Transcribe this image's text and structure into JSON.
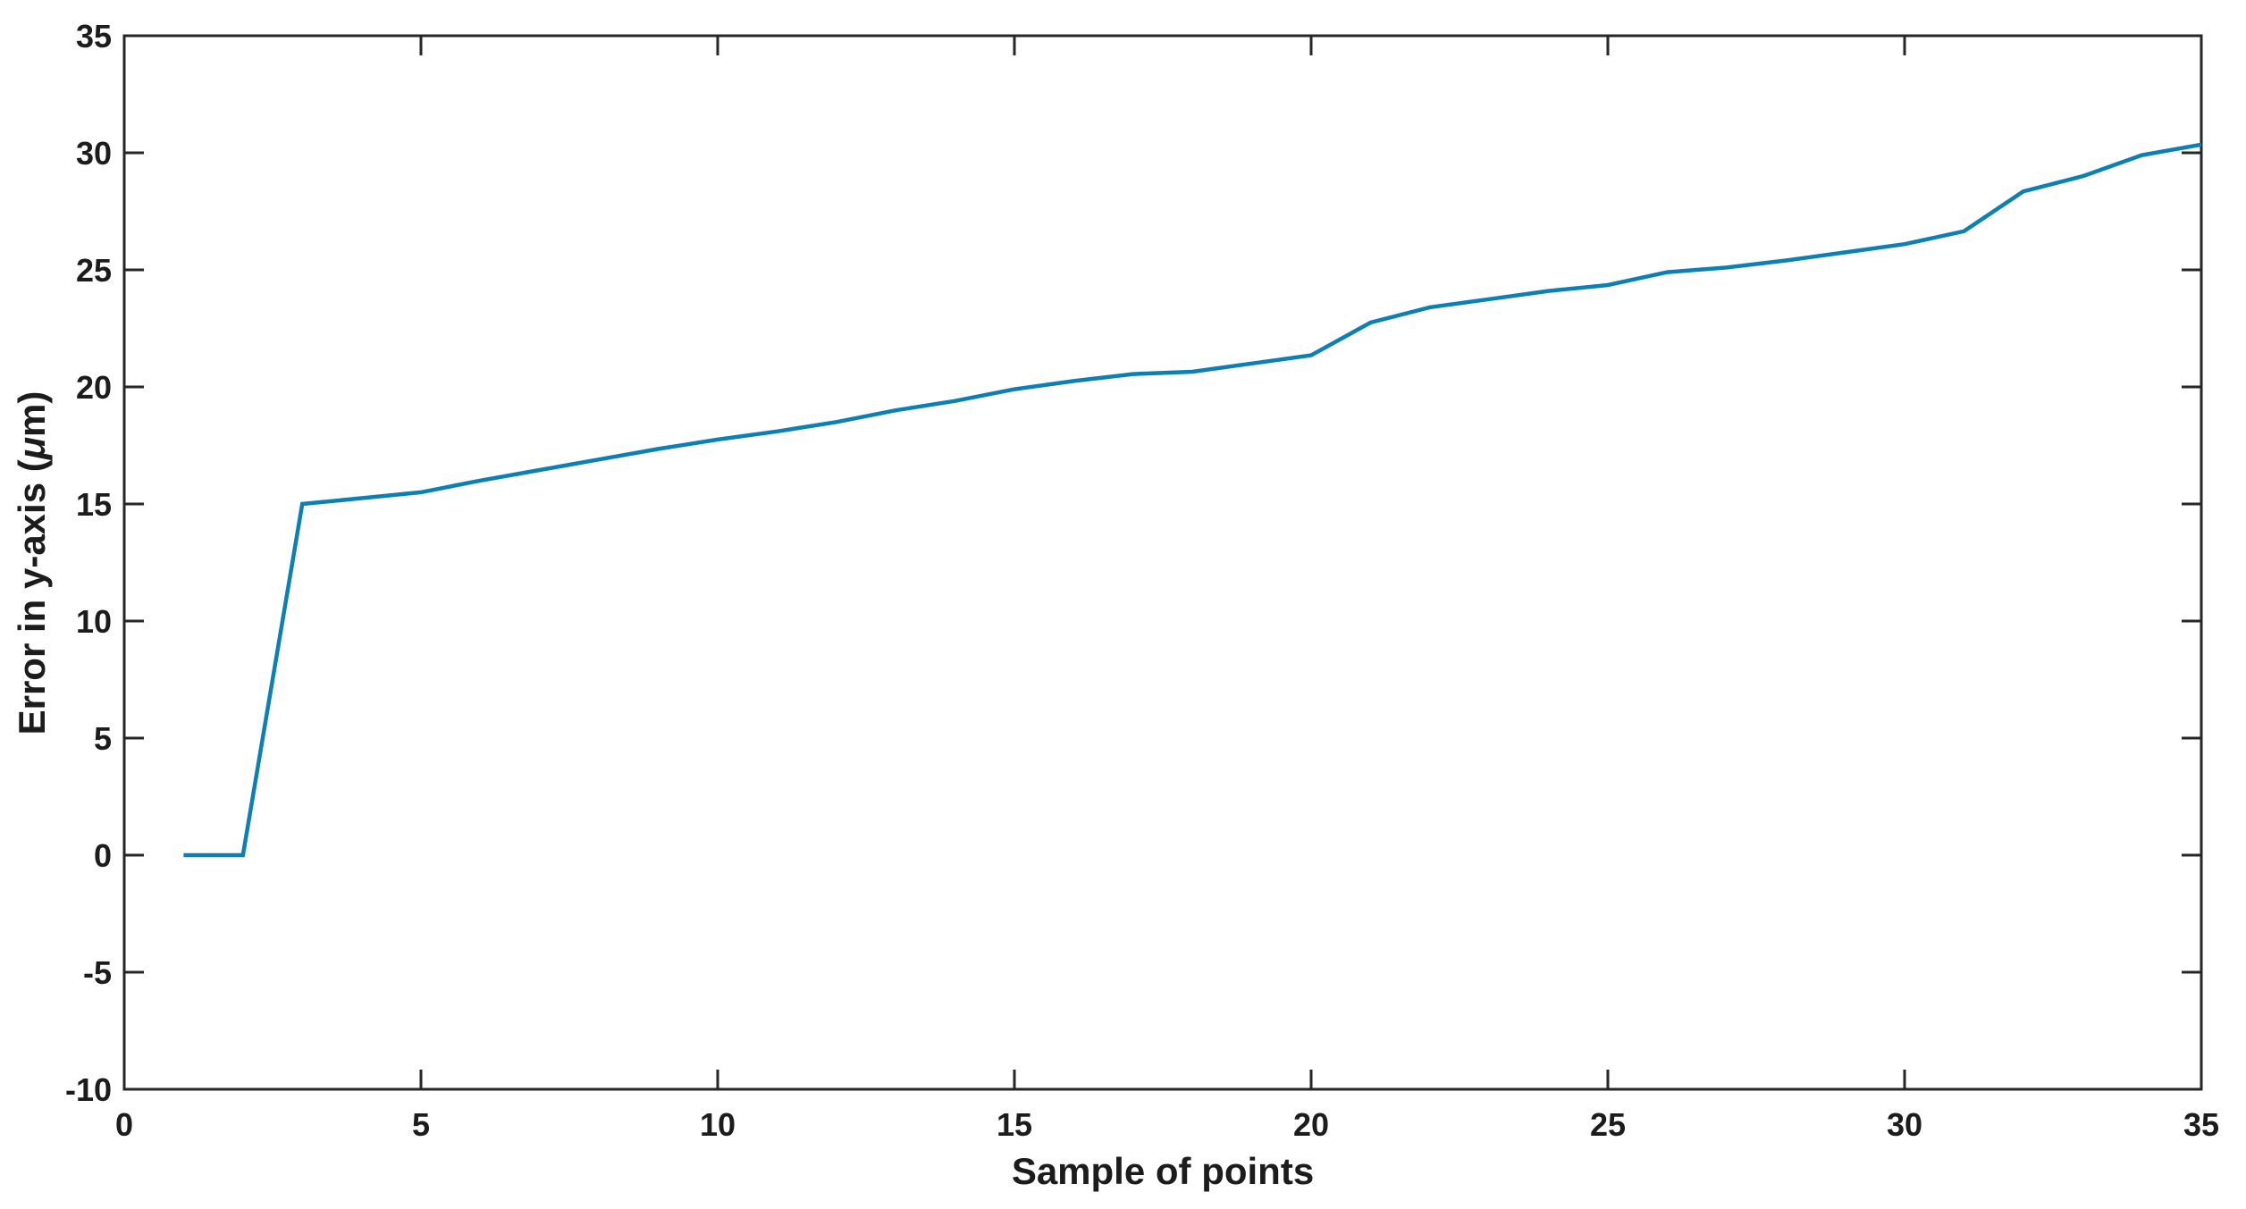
{
  "figure": {
    "background_color": "#ffffff"
  },
  "chart_data": {
    "type": "line",
    "title": "",
    "xlabel": "Sample of points",
    "ylabel": "Error in y-axis (μm)",
    "ylabel_italic_char": "μ",
    "xlim": [
      0,
      35
    ],
    "ylim": [
      -10,
      35
    ],
    "xticks": [
      0,
      5,
      10,
      15,
      20,
      25,
      30,
      35
    ],
    "yticks": [
      -10,
      -5,
      0,
      5,
      10,
      15,
      20,
      25,
      30,
      35
    ],
    "grid": false,
    "box": true,
    "tick_direction": "in",
    "legend": null,
    "axis_color": "#262626",
    "text_color": "#1c1c1c",
    "x": [
      1,
      2,
      3,
      4,
      5,
      6,
      7,
      8,
      9,
      10,
      11,
      12,
      13,
      14,
      15,
      16,
      17,
      18,
      19,
      20,
      21,
      22,
      23,
      24,
      25,
      26,
      27,
      28,
      29,
      30,
      31,
      32,
      33,
      34,
      35
    ],
    "series": [
      {
        "name": "Error in y-axis",
        "color": "#0c80b5",
        "line_width": 4.5,
        "values": [
          0,
          0,
          15.0,
          15.25,
          15.5,
          16.0,
          16.45,
          16.9,
          17.35,
          17.75,
          18.1,
          18.5,
          19.0,
          19.4,
          19.9,
          20.25,
          20.55,
          20.65,
          21.0,
          21.35,
          22.75,
          23.4,
          23.75,
          24.1,
          24.35,
          24.9,
          25.1,
          25.4,
          25.75,
          26.1,
          26.65,
          28.35,
          29.0,
          29.9,
          30.35
        ]
      }
    ]
  }
}
